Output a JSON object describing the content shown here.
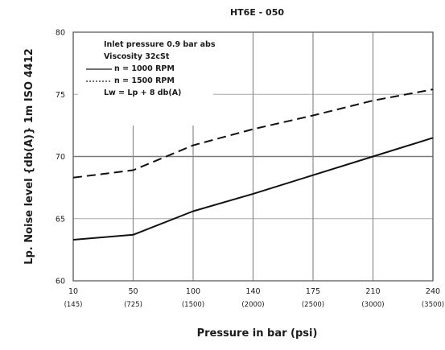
{
  "chart_data": {
    "type": "line",
    "title": "HT6E - 050",
    "xlabel": "Pressure in bar (psi)",
    "ylabel": "Lp. Noise level {db(A)} 1m ISO 4412",
    "x_ticks": [
      {
        "value": 10,
        "label": "10",
        "sublabel": "(145)"
      },
      {
        "value": 50,
        "label": "50",
        "sublabel": "(725)"
      },
      {
        "value": 100,
        "label": "100",
        "sublabel": "(1500)"
      },
      {
        "value": 140,
        "label": "140",
        "sublabel": "(2000)"
      },
      {
        "value": 175,
        "label": "175",
        "sublabel": "(2500)"
      },
      {
        "value": 210,
        "label": "210",
        "sublabel": "(3000)"
      },
      {
        "value": 240,
        "label": "240",
        "sublabel": "(3500)"
      }
    ],
    "y_ticks": [
      60,
      65,
      70,
      75,
      80
    ],
    "ylim": [
      60,
      80
    ],
    "series": [
      {
        "name": "n = 1000 RPM",
        "style": "solid",
        "x": [
          10,
          50,
          100,
          140,
          175,
          210,
          240
        ],
        "y": [
          63.3,
          63.7,
          65.6,
          67.0,
          68.5,
          70.0,
          71.5
        ]
      },
      {
        "name": "n = 1500 RPM",
        "style": "dashed",
        "x": [
          10,
          50,
          100,
          140,
          175,
          210,
          240
        ],
        "y": [
          68.3,
          68.9,
          70.9,
          72.2,
          73.3,
          74.5,
          75.4
        ]
      }
    ],
    "annotations": [
      "Inlet pressure 0.9 bar abs",
      "Viscosity 32cSt",
      "Lw = Lp + 8 db(A)"
    ],
    "grid": true,
    "legend_placement": "top-left"
  }
}
